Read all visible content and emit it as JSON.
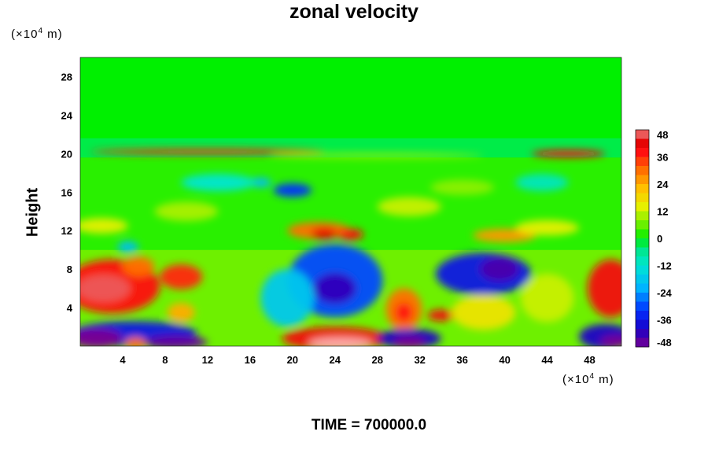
{
  "chart_data": {
    "type": "heatmap",
    "title": "zonal velocity",
    "xlabel": "",
    "ylabel": "Height",
    "x_unit": "(×10",
    "y_unit": "(×10",
    "unit_exponent": "4",
    "unit_suffix": " m)",
    "xlim": [
      0,
      51
    ],
    "ylim": [
      0,
      30
    ],
    "x_ticks": [
      4,
      8,
      12,
      16,
      20,
      24,
      28,
      32,
      36,
      40,
      44,
      48
    ],
    "y_ticks": [
      4,
      8,
      12,
      16,
      20,
      24,
      28
    ],
    "colorbar": {
      "min": -48,
      "max": 48,
      "step": 4,
      "tick_labels": [
        48,
        36,
        24,
        12,
        0,
        -12,
        -24,
        -36,
        -48
      ]
    },
    "footer": "TIME = 700000.0",
    "regions": [
      {
        "x": 3,
        "y": 6.2,
        "rx": 4.5,
        "ry": 2.8,
        "value": 38
      },
      {
        "x": 2.2,
        "y": 6.0,
        "rx": 2.5,
        "ry": 1.4,
        "value": 46
      },
      {
        "x": 9.5,
        "y": 7.2,
        "rx": 2.0,
        "ry": 1.3,
        "value": 36
      },
      {
        "x": 5.5,
        "y": 8.3,
        "rx": 1.5,
        "ry": 1.0,
        "value": 30
      },
      {
        "x": 9.5,
        "y": 3.5,
        "rx": 1.3,
        "ry": 1.0,
        "value": 24
      },
      {
        "x": 5,
        "y": 1.3,
        "rx": 6,
        "ry": 1.3,
        "value": -36
      },
      {
        "x": 1.5,
        "y": 0.8,
        "rx": 2.5,
        "ry": 1.0,
        "value": -48
      },
      {
        "x": 9,
        "y": 0.4,
        "rx": 3.0,
        "ry": 0.7,
        "value": -46
      },
      {
        "x": 5.2,
        "y": 0.3,
        "rx": 1.0,
        "ry": 0.6,
        "value": 30
      },
      {
        "x": 24,
        "y": 6.8,
        "rx": 4.5,
        "ry": 3.8,
        "value": -30
      },
      {
        "x": 24,
        "y": 6.0,
        "rx": 2.0,
        "ry": 1.6,
        "value": -42
      },
      {
        "x": 19.5,
        "y": 5.0,
        "rx": 2.5,
        "ry": 3.0,
        "value": -18
      },
      {
        "x": 24,
        "y": 0.8,
        "rx": 5.0,
        "ry": 1.2,
        "value": 40
      },
      {
        "x": 24.5,
        "y": 0.3,
        "rx": 3.0,
        "ry": 0.6,
        "value": 48
      },
      {
        "x": 30.5,
        "y": 3.8,
        "rx": 1.7,
        "ry": 2.2,
        "value": 30
      },
      {
        "x": 30.5,
        "y": 3.5,
        "rx": 0.8,
        "ry": 1.0,
        "value": 38
      },
      {
        "x": 34,
        "y": 3.2,
        "rx": 1.3,
        "ry": 0.6,
        "value": 40
      },
      {
        "x": 31,
        "y": 0.8,
        "rx": 3.0,
        "ry": 1.0,
        "value": -40
      },
      {
        "x": 31,
        "y": 0.4,
        "rx": 1.5,
        "ry": 0.6,
        "value": -48
      },
      {
        "x": 38,
        "y": 7.5,
        "rx": 4.5,
        "ry": 2.2,
        "value": -36
      },
      {
        "x": 39.5,
        "y": 8.0,
        "rx": 1.8,
        "ry": 1.2,
        "value": -44
      },
      {
        "x": 38,
        "y": 3.5,
        "rx": 3.0,
        "ry": 1.8,
        "value": 16
      },
      {
        "x": 44,
        "y": 5.0,
        "rx": 2.5,
        "ry": 2.5,
        "value": 12
      },
      {
        "x": 50,
        "y": 6.0,
        "rx": 2.2,
        "ry": 3.0,
        "value": 40
      },
      {
        "x": 49.5,
        "y": 1.0,
        "rx": 2.5,
        "ry": 1.3,
        "value": -40
      },
      {
        "x": 50.5,
        "y": 0.5,
        "rx": 1.5,
        "ry": 0.6,
        "value": -48
      },
      {
        "x": 22.5,
        "y": 12.0,
        "rx": 3.0,
        "ry": 0.9,
        "value": 30
      },
      {
        "x": 23,
        "y": 11.7,
        "rx": 1.2,
        "ry": 0.6,
        "value": 42
      },
      {
        "x": 25.5,
        "y": 11.6,
        "rx": 1.2,
        "ry": 0.6,
        "value": 38
      },
      {
        "x": 40,
        "y": 11.5,
        "rx": 3.0,
        "ry": 0.7,
        "value": 26
      },
      {
        "x": 44,
        "y": 12.3,
        "rx": 3.0,
        "ry": 0.8,
        "value": 14
      },
      {
        "x": 2,
        "y": 12.5,
        "rx": 2.5,
        "ry": 0.8,
        "value": 14
      },
      {
        "x": 20,
        "y": 16.2,
        "rx": 1.8,
        "ry": 0.7,
        "value": -32
      },
      {
        "x": 17,
        "y": 17.0,
        "rx": 1.0,
        "ry": 0.5,
        "value": -20
      },
      {
        "x": 13,
        "y": 17.0,
        "rx": 3.5,
        "ry": 0.9,
        "value": -12
      },
      {
        "x": 43.5,
        "y": 17.0,
        "rx": 2.5,
        "ry": 0.9,
        "value": -10
      },
      {
        "x": 4.5,
        "y": 10.3,
        "rx": 1.0,
        "ry": 0.6,
        "value": -20
      },
      {
        "x": 31,
        "y": 14.5,
        "rx": 3.0,
        "ry": 1.0,
        "value": 12
      },
      {
        "x": 36,
        "y": 16.5,
        "rx": 3.0,
        "ry": 0.8,
        "value": 8
      },
      {
        "x": 10,
        "y": 14.0,
        "rx": 3.0,
        "ry": 1.0,
        "value": 10
      },
      {
        "x": 46,
        "y": 20.0,
        "rx": 3.5,
        "ry": 0.4,
        "value": 40
      },
      {
        "x": 12,
        "y": 20.2,
        "rx": 11.0,
        "ry": 0.3,
        "value": 36
      },
      {
        "x": 28,
        "y": 19.8,
        "rx": 10.0,
        "ry": 0.3,
        "value": 8
      }
    ]
  }
}
